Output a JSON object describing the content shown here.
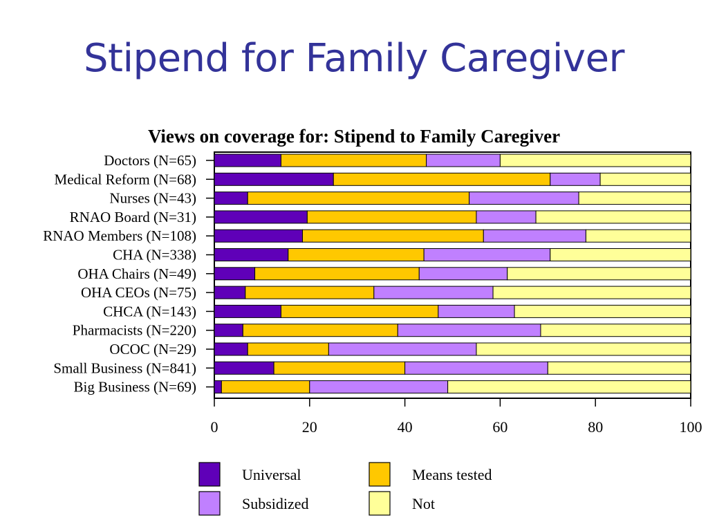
{
  "slide": {
    "title": "Stipend for Family Caregiver"
  },
  "chart_data": {
    "type": "bar",
    "orientation": "horizontal",
    "stacked": true,
    "title": "Views on coverage for: Stipend to Family Caregiver",
    "xlabel": "",
    "ylabel": "",
    "xlim": [
      0,
      100
    ],
    "xticks": [
      0,
      20,
      40,
      60,
      80,
      100
    ],
    "grid": false,
    "legend": "bottom",
    "categories": [
      "Doctors (N=65)",
      "Medical Reform (N=68)",
      "Nurses (N=43)",
      "RNAO Board (N=31)",
      "RNAO Members (N=108)",
      "CHA (N=338)",
      "OHA Chairs (N=49)",
      "OHA CEOs (N=75)",
      "CHCA (N=143)",
      "Pharmacists (N=220)",
      "OCOC (N=29)",
      "Small Business (N=841)",
      "Big Business (N=69)"
    ],
    "series": [
      {
        "name": "Universal",
        "color": "#5f00b8",
        "values": [
          14,
          25,
          7,
          19.5,
          18.5,
          15.5,
          8.5,
          6.5,
          14,
          6,
          7,
          12.5,
          1.5
        ]
      },
      {
        "name": "Means tested",
        "color": "#ffc800",
        "values": [
          30.5,
          45.5,
          46.5,
          35.5,
          38,
          28.5,
          34.5,
          27,
          33,
          32.5,
          17,
          27.5,
          18.5
        ]
      },
      {
        "name": "Subsidized",
        "color": "#c080ff",
        "values": [
          15.5,
          10.5,
          23,
          12.5,
          21.5,
          26.5,
          18.5,
          25,
          16,
          30,
          31,
          30,
          29
        ]
      },
      {
        "name": "Not",
        "color": "#ffff99",
        "values": [
          40,
          19,
          23.5,
          32.5,
          22,
          29.5,
          38.5,
          41.5,
          37,
          31.5,
          45,
          30,
          51
        ]
      }
    ]
  }
}
